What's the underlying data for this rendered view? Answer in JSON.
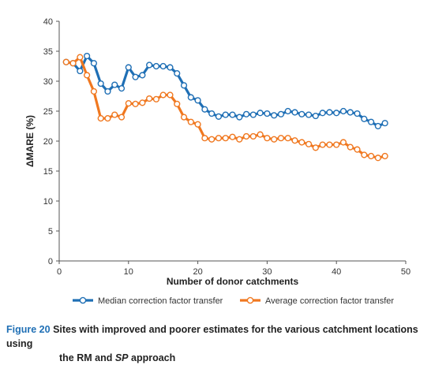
{
  "caption": {
    "label": "Figure 20",
    "text_line1": "Sites with improved and poorer estimates for the various catchment locations using",
    "text_line2_pre": "the RM and ",
    "text_line2_em": "SP",
    "text_line2_post": " approach"
  },
  "chart_data": {
    "type": "line",
    "title": "",
    "xlabel": "Number of donor catchments",
    "ylabel": "ΔMARE (%)",
    "xlim": [
      0,
      50
    ],
    "ylim": [
      0,
      40
    ],
    "xticks": [
      0,
      10,
      20,
      30,
      40,
      50
    ],
    "yticks": [
      0,
      5,
      10,
      15,
      20,
      25,
      30,
      35,
      40
    ],
    "grid": false,
    "legend_position": "bottom",
    "series": [
      {
        "name": "Median correction factor transfer",
        "color": "#1f6fb5",
        "x": [
          1,
          2,
          3,
          4,
          5,
          6,
          7,
          8,
          9,
          10,
          11,
          12,
          13,
          14,
          15,
          16,
          17,
          18,
          19,
          20,
          21,
          22,
          23,
          24,
          25,
          26,
          27,
          28,
          29,
          30,
          31,
          32,
          33,
          34,
          35,
          36,
          37,
          38,
          39,
          40,
          41,
          42,
          43,
          44,
          45,
          46,
          47
        ],
        "y": [
          33.2,
          33.0,
          31.7,
          34.2,
          33.0,
          29.6,
          28.3,
          29.4,
          28.8,
          32.3,
          30.7,
          31.0,
          32.7,
          32.5,
          32.5,
          32.3,
          31.3,
          29.3,
          27.3,
          26.8,
          25.3,
          24.6,
          24.1,
          24.4,
          24.4,
          24.0,
          24.5,
          24.4,
          24.7,
          24.6,
          24.3,
          24.5,
          25.0,
          24.8,
          24.5,
          24.4,
          24.2,
          24.7,
          24.8,
          24.7,
          25.0,
          24.8,
          24.6,
          23.7,
          23.2,
          22.5,
          23.0
        ]
      },
      {
        "name": "Average correction factor transfer",
        "color": "#f07820",
        "x": [
          1,
          2,
          3,
          4,
          5,
          6,
          7,
          8,
          9,
          10,
          11,
          12,
          13,
          14,
          15,
          16,
          17,
          18,
          19,
          20,
          21,
          22,
          23,
          24,
          25,
          26,
          27,
          28,
          29,
          30,
          31,
          32,
          33,
          34,
          35,
          36,
          37,
          38,
          39,
          40,
          41,
          42,
          43,
          44,
          45,
          46,
          47
        ],
        "y": [
          33.2,
          33.0,
          34.0,
          31.0,
          28.3,
          23.8,
          23.8,
          24.4,
          24.0,
          26.3,
          26.2,
          26.4,
          27.1,
          27.0,
          27.7,
          27.7,
          26.2,
          24.0,
          23.2,
          22.8,
          20.5,
          20.3,
          20.5,
          20.5,
          20.7,
          20.3,
          20.8,
          20.8,
          21.1,
          20.5,
          20.3,
          20.5,
          20.5,
          20.1,
          19.8,
          19.5,
          18.9,
          19.4,
          19.4,
          19.4,
          19.8,
          19.0,
          18.6,
          17.7,
          17.5,
          17.2,
          17.5
        ]
      }
    ]
  }
}
